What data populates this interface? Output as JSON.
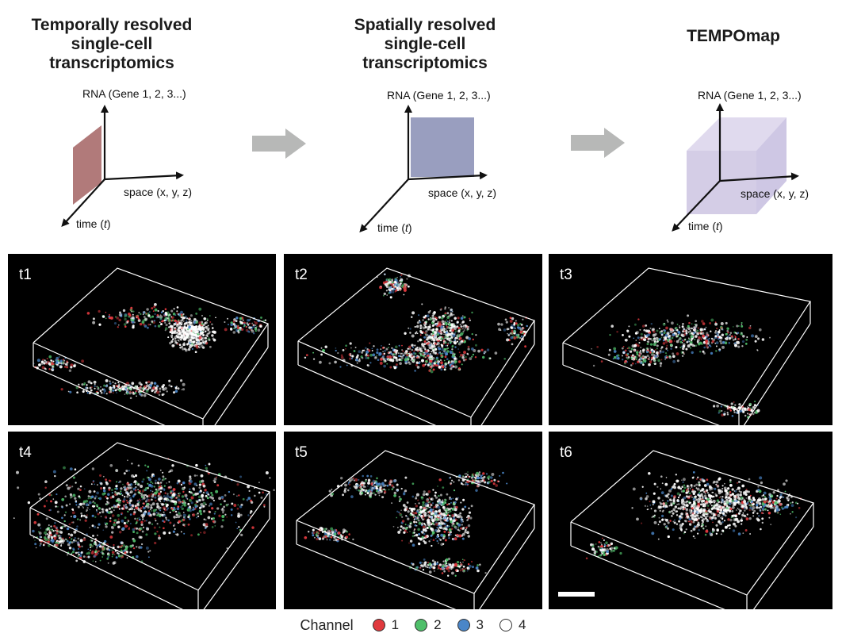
{
  "titles": {
    "temporal": "Temporally resolved\nsingle-cell\ntranscriptomics",
    "spatial": "Spatially resolved\nsingle-cell\ntranscriptomics",
    "tempomap": "TEMPOmap"
  },
  "axes": {
    "rna": "RNA (Gene 1, 2, 3...)",
    "space": "space (x, y, z)",
    "time_prefix": "time (",
    "time_var": "t",
    "time_suffix": ")"
  },
  "colors": {
    "temporal_plane": "#a86b6b",
    "spatial_plane": "#8e93b8",
    "tempomap_cube": "#c9c0e0",
    "arrow": "#b7b8b7"
  },
  "panels": [
    {
      "label": "t1"
    },
    {
      "label": "t2"
    },
    {
      "label": "t3"
    },
    {
      "label": "t4"
    },
    {
      "label": "t5"
    },
    {
      "label": "t6"
    }
  ],
  "legend": {
    "title": "Channel",
    "items": [
      {
        "label": "1",
        "color": "#e0393e"
      },
      {
        "label": "2",
        "color": "#4fbf6a"
      },
      {
        "label": "3",
        "color": "#4a86c8"
      },
      {
        "label": "4",
        "color": "#ffffff"
      }
    ]
  }
}
